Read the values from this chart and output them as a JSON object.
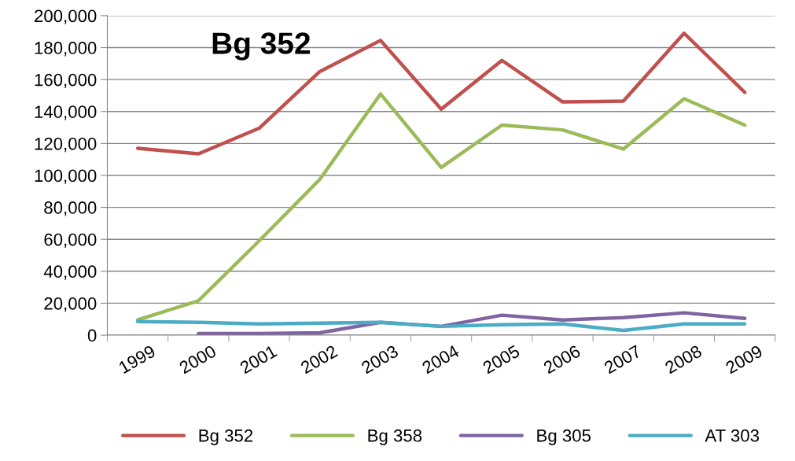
{
  "chart_data": {
    "type": "line",
    "title": "Bg 352",
    "categories": [
      "1999",
      "2000",
      "2001",
      "2002",
      "2003",
      "2004",
      "2005",
      "2006",
      "2007",
      "2008",
      "2009"
    ],
    "series": [
      {
        "name": "Bg 352",
        "color": "#c0504d",
        "values": [
          117000,
          113500,
          129500,
          165000,
          184500,
          141500,
          172000,
          146000,
          146500,
          189000,
          152000
        ]
      },
      {
        "name": "Bg 358",
        "color": "#9bbb59",
        "values": [
          9500,
          21500,
          59000,
          97500,
          151000,
          105000,
          131500,
          128500,
          116500,
          148000,
          131500
        ]
      },
      {
        "name": "Bg 305",
        "color": "#8064a2",
        "values": [
          null,
          1000,
          1000,
          1500,
          8000,
          5500,
          12500,
          9500,
          11000,
          14000,
          10500
        ]
      },
      {
        "name": "AT 303",
        "color": "#4bacc6",
        "values": [
          8500,
          8000,
          7000,
          7500,
          8000,
          5500,
          6500,
          7000,
          3000,
          7000,
          7000
        ]
      }
    ],
    "ylim": [
      0,
      200000
    ],
    "yticks": [
      {
        "value": 0,
        "label": "0"
      },
      {
        "value": 20000,
        "label": "20,000"
      },
      {
        "value": 40000,
        "label": "40,000"
      },
      {
        "value": 60000,
        "label": "60,000"
      },
      {
        "value": 80000,
        "label": "80,000"
      },
      {
        "value": 100000,
        "label": "100,000"
      },
      {
        "value": 120000,
        "label": "120,000"
      },
      {
        "value": 140000,
        "label": "140,000"
      },
      {
        "value": 160000,
        "label": "160,000"
      },
      {
        "value": 180000,
        "label": "180,000"
      },
      {
        "value": 200000,
        "label": "200,000"
      }
    ],
    "grid": "y",
    "legend": "bottom",
    "marker": "none",
    "line_style": "solid"
  }
}
